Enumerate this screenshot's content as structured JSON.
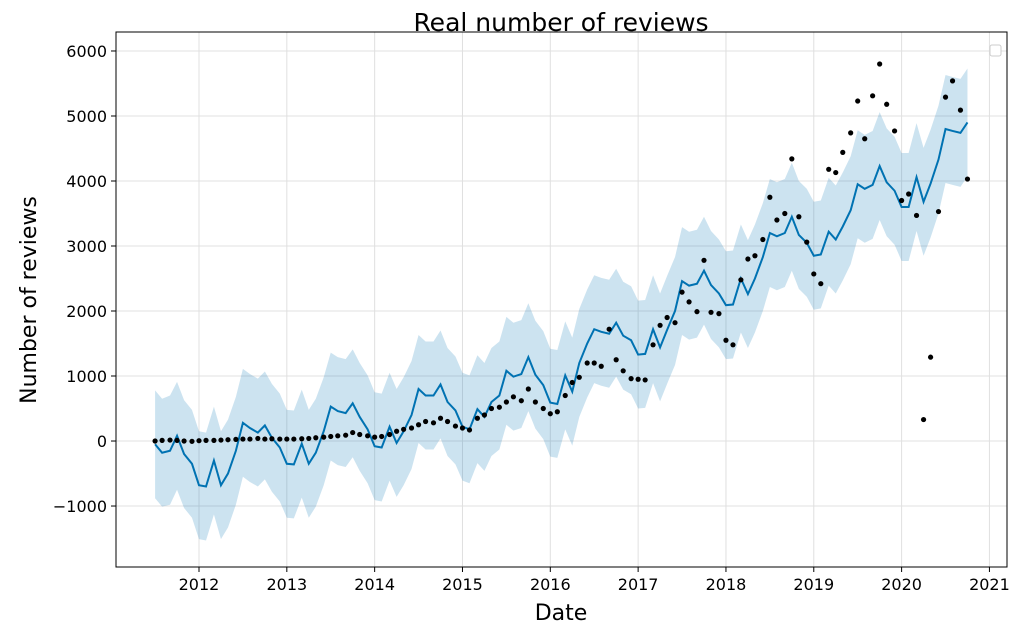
{
  "chart_data": {
    "type": "forecast",
    "title": "Real number of reviews",
    "x_label": "Date",
    "y_label": "Number of reviews",
    "x": [
      2011.5,
      2011.58,
      2011.67,
      2011.75,
      2011.83,
      2011.92,
      2012.0,
      2012.08,
      2012.17,
      2012.25,
      2012.33,
      2012.42,
      2012.5,
      2012.58,
      2012.67,
      2012.75,
      2012.83,
      2012.92,
      2013.0,
      2013.08,
      2013.17,
      2013.25,
      2013.33,
      2013.42,
      2013.5,
      2013.58,
      2013.67,
      2013.75,
      2013.83,
      2013.92,
      2014.0,
      2014.08,
      2014.17,
      2014.25,
      2014.33,
      2014.42,
      2014.5,
      2014.58,
      2014.67,
      2014.75,
      2014.83,
      2014.92,
      2015.0,
      2015.08,
      2015.17,
      2015.25,
      2015.33,
      2015.42,
      2015.5,
      2015.58,
      2015.67,
      2015.75,
      2015.83,
      2015.92,
      2016.0,
      2016.08,
      2016.17,
      2016.25,
      2016.33,
      2016.42,
      2016.5,
      2016.58,
      2016.67,
      2016.75,
      2016.83,
      2016.92,
      2017.0,
      2017.08,
      2017.17,
      2017.25,
      2017.33,
      2017.42,
      2017.5,
      2017.58,
      2017.67,
      2017.75,
      2017.83,
      2017.92,
      2018.0,
      2018.08,
      2018.17,
      2018.25,
      2018.33,
      2018.42,
      2018.5,
      2018.58,
      2018.67,
      2018.75,
      2018.83,
      2018.92,
      2019.0,
      2019.08,
      2019.17,
      2019.25,
      2019.33,
      2019.42,
      2019.5,
      2019.58,
      2019.67,
      2019.75,
      2019.83,
      2019.92,
      2020.0,
      2020.08,
      2020.17,
      2020.25,
      2020.33,
      2020.42,
      2020.5,
      2020.58,
      2020.67,
      2020.75
    ],
    "band": {
      "color": "#0072B2",
      "opacity": 0.2,
      "lower": [
        -880,
        -1010,
        -980,
        -750,
        -1030,
        -1180,
        -1510,
        -1530,
        -1130,
        -1510,
        -1330,
        -980,
        -550,
        -630,
        -700,
        -590,
        -780,
        -930,
        -1180,
        -1190,
        -870,
        -1180,
        -1010,
        -680,
        -300,
        -370,
        -400,
        -250,
        -460,
        -650,
        -910,
        -930,
        -610,
        -860,
        -680,
        -430,
        -30,
        -130,
        -130,
        40,
        -230,
        -360,
        -610,
        -650,
        -340,
        -460,
        -230,
        -130,
        250,
        160,
        200,
        460,
        190,
        30,
        -240,
        -260,
        180,
        -70,
        370,
        670,
        890,
        850,
        820,
        990,
        790,
        720,
        500,
        510,
        890,
        610,
        880,
        1170,
        1630,
        1560,
        1590,
        1790,
        1570,
        1440,
        1260,
        1270,
        1670,
        1430,
        1670,
        2000,
        2370,
        2320,
        2370,
        2620,
        2340,
        2220,
        2020,
        2040,
        2390,
        2270,
        2470,
        2720,
        3120,
        3050,
        3110,
        3400,
        3150,
        3020,
        2770,
        2770,
        3230,
        2850,
        3130,
        3500,
        3970,
        3940,
        3910,
        4070
      ],
      "upper": [
        780,
        650,
        700,
        910,
        630,
        480,
        150,
        130,
        530,
        150,
        330,
        680,
        1110,
        1030,
        960,
        1070,
        880,
        730,
        480,
        470,
        790,
        480,
        650,
        980,
        1360,
        1290,
        1260,
        1410,
        1200,
        1010,
        750,
        730,
        1050,
        800,
        980,
        1230,
        1630,
        1530,
        1530,
        1700,
        1430,
        1300,
        1050,
        1010,
        1320,
        1200,
        1430,
        1530,
        1910,
        1820,
        1860,
        2120,
        1850,
        1690,
        1420,
        1400,
        1840,
        1590,
        2030,
        2330,
        2550,
        2510,
        2480,
        2650,
        2450,
        2380,
        2160,
        2170,
        2550,
        2270,
        2540,
        2830,
        3290,
        3220,
        3250,
        3450,
        3230,
        3100,
        2920,
        2930,
        3330,
        3090,
        3330,
        3660,
        4030,
        3980,
        4030,
        4280,
        4000,
        3880,
        3680,
        3700,
        4050,
        3930,
        4130,
        4380,
        4780,
        4710,
        4770,
        5060,
        4810,
        4680,
        4430,
        4430,
        4890,
        4510,
        4790,
        5160,
        5630,
        5600,
        5570,
        5730
      ]
    },
    "series": [
      {
        "kind": "line",
        "color": "#0072B2",
        "values": [
          -50,
          -180,
          -150,
          80,
          -200,
          -350,
          -680,
          -700,
          -300,
          -680,
          -500,
          -150,
          280,
          200,
          130,
          240,
          50,
          -100,
          -350,
          -360,
          -40,
          -350,
          -180,
          150,
          530,
          460,
          430,
          580,
          370,
          180,
          -80,
          -100,
          220,
          -30,
          150,
          400,
          800,
          700,
          700,
          870,
          600,
          470,
          220,
          180,
          490,
          370,
          600,
          700,
          1080,
          990,
          1030,
          1290,
          1020,
          860,
          590,
          570,
          1010,
          760,
          1200,
          1500,
          1720,
          1680,
          1650,
          1820,
          1620,
          1550,
          1330,
          1340,
          1720,
          1440,
          1710,
          2000,
          2460,
          2390,
          2420,
          2620,
          2400,
          2270,
          2090,
          2100,
          2500,
          2260,
          2500,
          2830,
          3200,
          3150,
          3200,
          3450,
          3170,
          3050,
          2850,
          2870,
          3220,
          3100,
          3300,
          3550,
          3950,
          3880,
          3940,
          4230,
          3980,
          3850,
          3600,
          3600,
          4060,
          3680,
          3960,
          4330,
          4800,
          4770,
          4740,
          4900
        ]
      },
      {
        "kind": "points",
        "color": "#000000",
        "values": [
          0,
          10,
          15,
          10,
          0,
          -5,
          5,
          10,
          10,
          15,
          20,
          25,
          30,
          30,
          40,
          30,
          35,
          30,
          30,
          30,
          35,
          40,
          50,
          60,
          70,
          80,
          90,
          130,
          100,
          80,
          60,
          70,
          100,
          150,
          180,
          200,
          250,
          300,
          280,
          350,
          300,
          230,
          200,
          170,
          350,
          400,
          500,
          520,
          600,
          680,
          620,
          800,
          600,
          500,
          420,
          450,
          700,
          900,
          980,
          1200,
          1200,
          1150,
          1720,
          1250,
          1080,
          960,
          950,
          940,
          1480,
          1780,
          1900,
          1820,
          2290,
          2140,
          1990,
          2780,
          1980,
          1960,
          1550,
          1480,
          2480,
          2800,
          2850,
          3100,
          3750,
          3400,
          3500,
          4340,
          3450,
          3060,
          2570,
          2420,
          4180,
          4130,
          4440,
          4740,
          5230,
          4650,
          5310,
          5800,
          5180,
          4770,
          3700,
          3800,
          3470,
          330,
          1290,
          3530,
          5290,
          5540,
          5090,
          4030
        ]
      }
    ],
    "xlim": [
      2011.055,
      2021.2
    ],
    "ylim": [
      -1938,
      6292
    ],
    "xticks": [
      2012,
      2013,
      2014,
      2015,
      2016,
      2017,
      2018,
      2019,
      2020,
      2021
    ],
    "yticks": [
      {
        "value": -1000,
        "label": "−1000"
      },
      0,
      1000,
      2000,
      3000,
      4000,
      5000,
      6000
    ],
    "grid": true,
    "legend": "upper right"
  }
}
